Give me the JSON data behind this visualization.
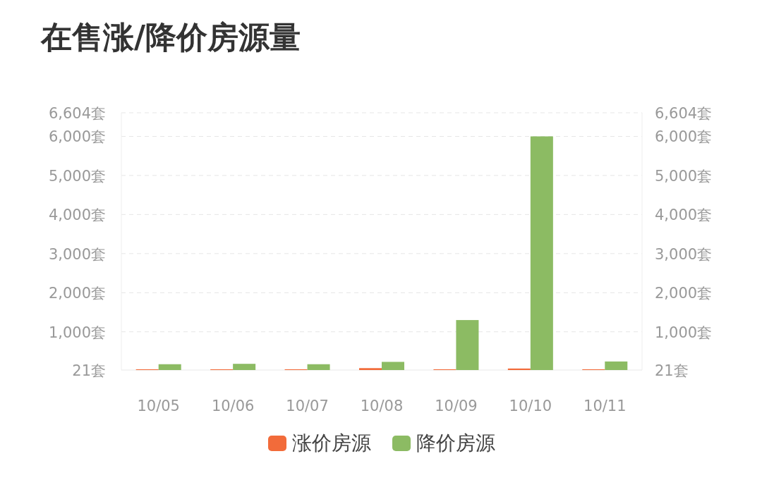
{
  "chart_data": {
    "type": "bar",
    "title": "在售涨/降价房源量",
    "categories": [
      "10/05",
      "10/06",
      "10/07",
      "10/08",
      "10/09",
      "10/10",
      "10/11"
    ],
    "series": [
      {
        "name": "涨价房源",
        "color": "#f26b3a",
        "values": [
          40,
          40,
          40,
          70,
          40,
          60,
          40
        ]
      },
      {
        "name": "降价房源",
        "color": "#8cbb63",
        "values": [
          170,
          180,
          170,
          230,
          1300,
          6000,
          240
        ]
      }
    ],
    "ylim": [
      21,
      6604
    ],
    "yticks": [
      {
        "value": 21,
        "label": "21套"
      },
      {
        "value": 1000,
        "label": "1,000套"
      },
      {
        "value": 2000,
        "label": "2,000套"
      },
      {
        "value": 3000,
        "label": "3,000套"
      },
      {
        "value": 4000,
        "label": "4,000套"
      },
      {
        "value": 5000,
        "label": "5,000套"
      },
      {
        "value": 6000,
        "label": "6,000套"
      },
      {
        "value": 6604,
        "label": "6,604套"
      }
    ],
    "y2lim": [
      21,
      6604
    ],
    "y2ticks": [
      {
        "value": 21,
        "label": "21套"
      },
      {
        "value": 1000,
        "label": "1,000套"
      },
      {
        "value": 2000,
        "label": "2,000套"
      },
      {
        "value": 3000,
        "label": "3,000套"
      },
      {
        "value": 4000,
        "label": "4,000套"
      },
      {
        "value": 5000,
        "label": "5,000套"
      },
      {
        "value": 6000,
        "label": "6,000套"
      },
      {
        "value": 6604,
        "label": "6,604套"
      }
    ],
    "grid": "y",
    "legend": "bottom"
  }
}
